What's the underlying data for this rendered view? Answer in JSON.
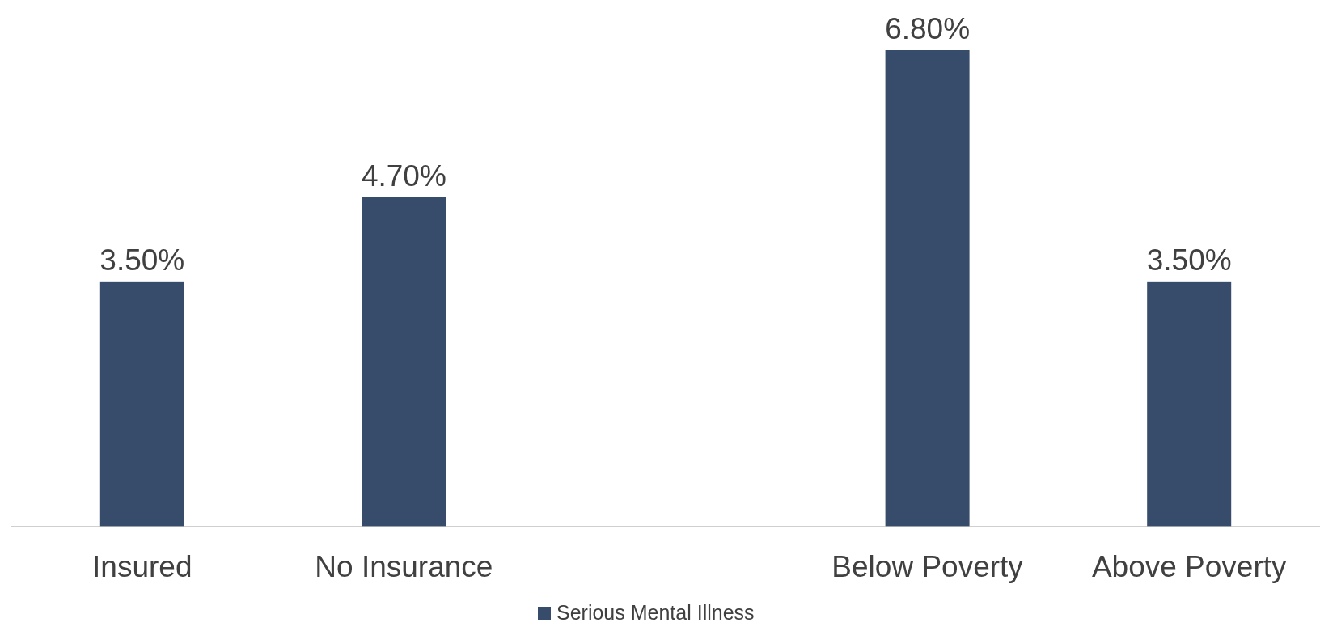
{
  "chart_data": {
    "type": "bar",
    "categories": [
      "Insured",
      "No Insurance",
      null,
      "Below Poverty",
      "Above Poverty"
    ],
    "series": [
      {
        "name": "Serious Mental Illness",
        "color": "#374b6a",
        "values": [
          3.5,
          4.7,
          null,
          6.8,
          3.5
        ],
        "value_labels": [
          "3.50%",
          "4.70%",
          null,
          "6.80%",
          "3.50%"
        ]
      }
    ],
    "legend": "bottom"
  }
}
